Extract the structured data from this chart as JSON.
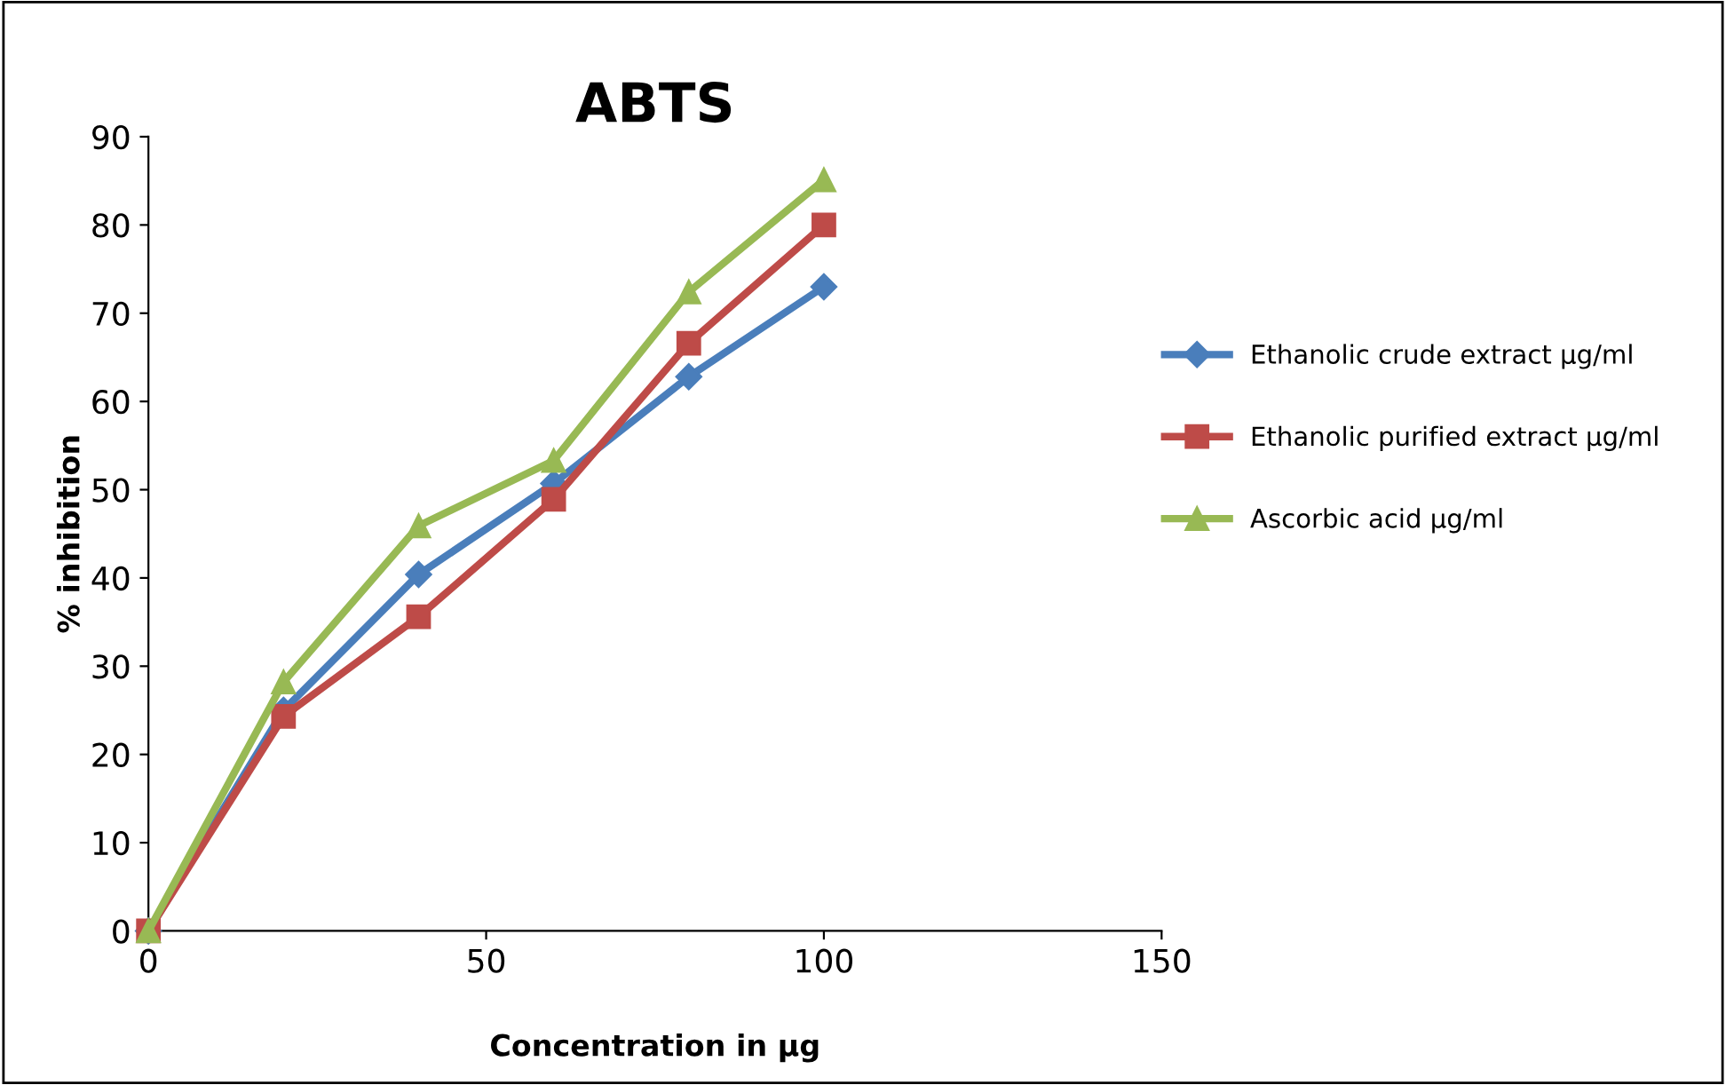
{
  "chart_data": {
    "type": "line",
    "title": "ABTS",
    "xlabel": "Concentration in µg",
    "ylabel": "% inhibition",
    "x": [
      0,
      20,
      40,
      60,
      80,
      100
    ],
    "series": [
      {
        "name": "Ethanolic crude extract µg/ml",
        "color": "#4a7ebb",
        "marker": "diamond",
        "values": [
          0,
          25,
          40.4,
          50.7,
          62.8,
          73
        ]
      },
      {
        "name": "Ethanolic purified extract µg/ml",
        "color": "#be4b48",
        "marker": "square",
        "values": [
          0,
          24.3,
          35.6,
          48.9,
          66.6,
          80
        ]
      },
      {
        "name": "Ascorbic acid µg/ml",
        "color": "#98b954",
        "marker": "triangle",
        "values": [
          0,
          28.2,
          45.9,
          53.3,
          72.4,
          85.1
        ]
      }
    ],
    "xlim": [
      0,
      150
    ],
    "xticks": [
      0,
      50,
      100,
      150
    ],
    "ylim": [
      0,
      90
    ],
    "yticks": [
      0,
      10,
      20,
      30,
      40,
      50,
      60,
      70,
      80,
      90
    ],
    "grid": false,
    "legend": "right",
    "line_style": "solid"
  }
}
